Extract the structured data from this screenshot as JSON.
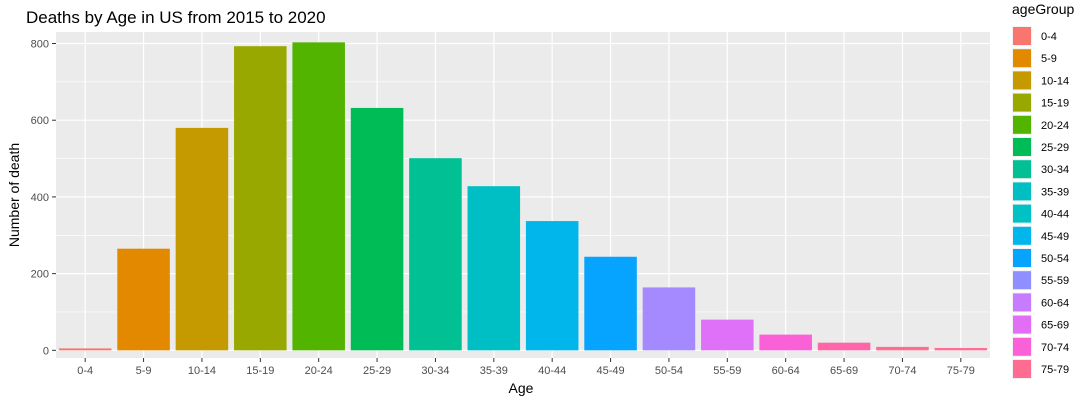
{
  "chart_data": {
    "type": "bar",
    "title": "Deaths by Age in US from 2015 to 2020",
    "xlabel": "Age",
    "ylabel": "Number of death",
    "categories": [
      "0-4",
      "5-9",
      "10-14",
      "15-19",
      "20-24",
      "25-29",
      "30-34",
      "35-39",
      "40-44",
      "45-49",
      "50-54",
      "55-59",
      "60-64",
      "65-69",
      "70-74",
      "75-79"
    ],
    "values": [
      5,
      265,
      580,
      793,
      803,
      632,
      501,
      428,
      337,
      244,
      164,
      80,
      41,
      20,
      9,
      6
    ],
    "colors": [
      "#F8766D",
      "#E38900",
      "#C49A00",
      "#99A800",
      "#53B400",
      "#00BC56",
      "#00C094",
      "#00BFC4",
      "#00B6EB",
      "#06A4FF",
      "#A58AFF",
      "#DF70F8",
      "#FB61D7",
      "#FF66A8",
      "#FF6C91",
      "#FF6C91"
    ],
    "legend_colors": [
      "#F8766D",
      "#E38900",
      "#C49A00",
      "#99A800",
      "#53B400",
      "#00BC56",
      "#00C094",
      "#00BFC4",
      "#00C1C4",
      "#00B6EB",
      "#06A4FF",
      "#8F8FFF",
      "#C77CFF",
      "#E36EF6",
      "#FB61D7",
      "#FF6C91"
    ],
    "ylim": [
      -20,
      830
    ],
    "yticks": [
      0,
      200,
      400,
      600,
      800
    ],
    "grid": true,
    "legend": {
      "title": "ageGroup",
      "position": "right",
      "labels": [
        "0-4",
        "5-9",
        "10-14",
        "15-19",
        "20-24",
        "25-29",
        "30-34",
        "35-39",
        "40-44",
        "45-49",
        "50-54",
        "55-59",
        "60-64",
        "65-69",
        "70-74",
        "75-79"
      ]
    }
  }
}
